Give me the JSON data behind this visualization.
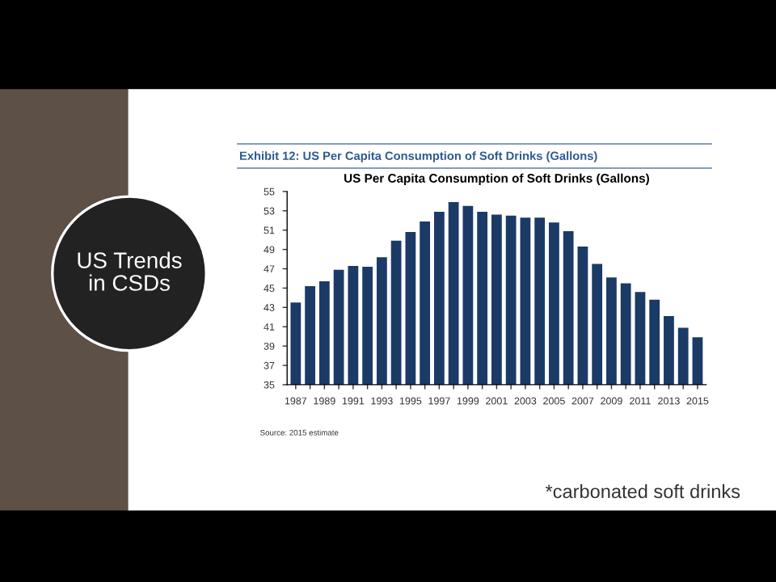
{
  "chart_data": {
    "type": "bar",
    "title": "Exhibit 12: US Per Capita Consumption of Soft Drinks (Gallons)",
    "subtitle": "US Per Capita Consumption of Soft Drinks (Gallons)",
    "categories": [
      "1987",
      null,
      "1989",
      null,
      "1991",
      null,
      "1993",
      null,
      "1995",
      null,
      "1997",
      null,
      "1999",
      null,
      "2001",
      null,
      "2003",
      null,
      "2005",
      null,
      "2007",
      null,
      "2009",
      null,
      "2011",
      null,
      "2013",
      null,
      "2015"
    ],
    "values": [
      43.5,
      45.2,
      45.7,
      46.9,
      47.3,
      47.2,
      48.2,
      49.9,
      50.8,
      51.9,
      52.9,
      53.9,
      53.5,
      52.9,
      52.6,
      52.5,
      52.3,
      52.3,
      51.8,
      50.9,
      49.3,
      47.5,
      46.1,
      45.5,
      44.6,
      43.8,
      42.1,
      40.9,
      39.9
    ],
    "color": "#1b3a66",
    "ylim": [
      35,
      55
    ],
    "yticks": [
      35,
      37,
      39,
      41,
      43,
      45,
      47,
      49,
      51,
      53,
      55
    ],
    "grid": false,
    "annotations": [
      "Source: 2015 estimate",
      "US Trends in CSDs",
      "*carbonated soft drinks"
    ]
  }
}
